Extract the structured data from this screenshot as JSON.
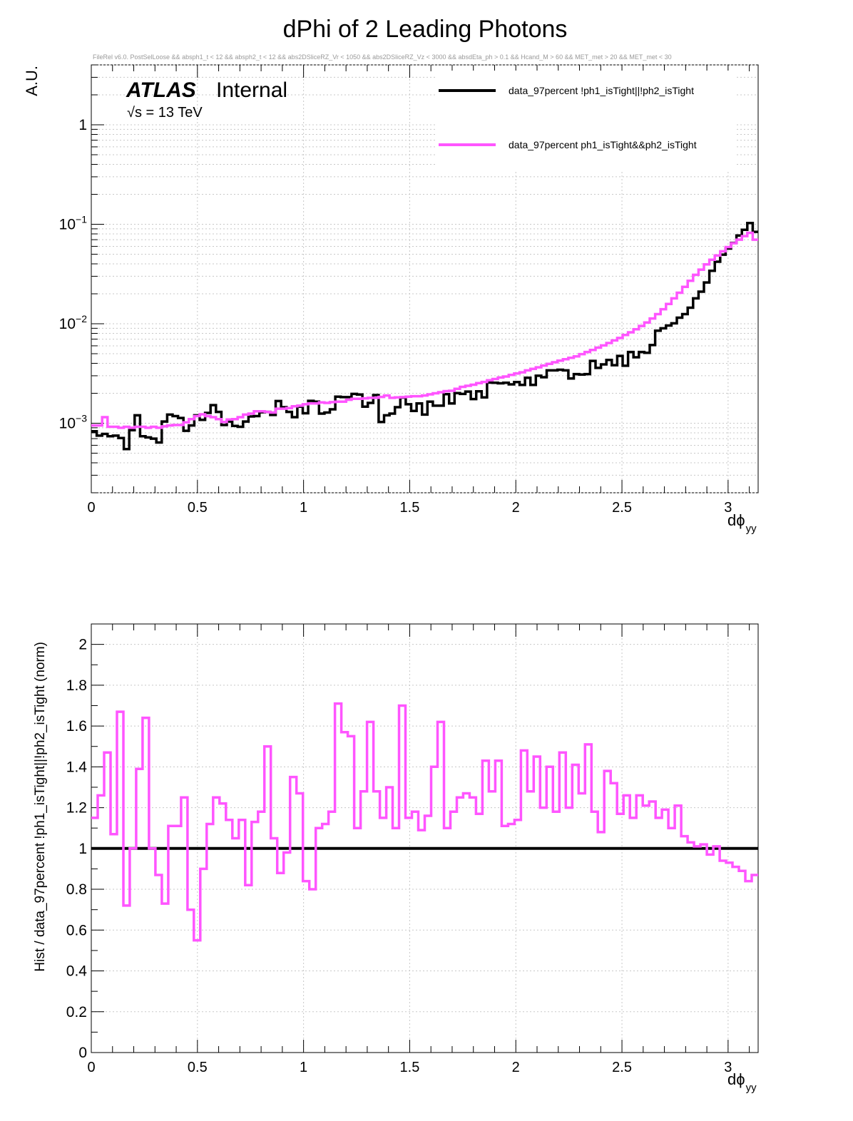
{
  "chart_data": [
    {
      "type": "line",
      "title": "dPhi of 2 Leading Photons",
      "subtitle": "FileRel v6.0. PostSelLoose &&  absph1_t < 12 && absph2_t < 12 && abs2DSliceRZ_Vr < 1050 && abs2DSliceRZ_Vz < 3000 && absdEta_ph > 0.1 && Hcand_M > 60 && MET_met > 20 && MET_met < 30",
      "ylabel": "A.U.",
      "xlabel_main": "dϕ",
      "xlabel_sub": "yy",
      "atlas_label": "ATLAS",
      "atlas_status": "Internal",
      "energy_label": "√s = 13 TeV",
      "xlim": [
        0,
        3.14159
      ],
      "ylim": [
        0.0002,
        4.0
      ],
      "yscale": "log",
      "grid": true,
      "legend_position": "top-right",
      "x_ticks": [
        "0",
        "0.5",
        "1",
        "1.5",
        "2",
        "2.5",
        "3"
      ],
      "y_ticks": [
        {
          "value": 0.001,
          "base": "10",
          "exp": "−3"
        },
        {
          "value": 0.01,
          "base": "10",
          "exp": "−2"
        },
        {
          "value": 0.1,
          "base": "10",
          "exp": "−1"
        },
        {
          "value": 1,
          "base": "1",
          "exp": ""
        }
      ],
      "series": [
        {
          "name": "data_97percent  !ph1_isTight||!ph2_isTight",
          "color": "#000000",
          "values": [
            0.00083,
            0.00075,
            0.00078,
            0.00074,
            0.00075,
            0.00071,
            0.00055,
            0.00085,
            0.0012,
            0.00074,
            0.00072,
            0.0007,
            0.00064,
            0.00104,
            0.00122,
            0.00118,
            0.00113,
            0.00084,
            0.00095,
            0.0012,
            0.00108,
            0.00127,
            0.00152,
            0.0013,
            0.00096,
            0.00104,
            0.00094,
            0.00092,
            0.00104,
            0.00117,
            0.00118,
            0.00129,
            0.0013,
            0.00121,
            0.00167,
            0.00145,
            0.0013,
            0.00115,
            0.00147,
            0.00126,
            0.00168,
            0.00165,
            0.00125,
            0.00128,
            0.00138,
            0.00185,
            0.00183,
            0.00183,
            0.00197,
            0.00194,
            0.00147,
            0.0016,
            0.00192,
            0.00103,
            0.0012,
            0.00125,
            0.00145,
            0.00181,
            0.00155,
            0.00133,
            0.00158,
            0.00122,
            0.00165,
            0.0015,
            0.0015,
            0.00196,
            0.00158,
            0.00201,
            0.00197,
            0.00208,
            0.00175,
            0.00209,
            0.00182,
            0.00256,
            0.00255,
            0.00252,
            0.00255,
            0.00246,
            0.00259,
            0.00243,
            0.00286,
            0.00243,
            0.003,
            0.0029,
            0.0034,
            0.0034,
            0.00345,
            0.0034,
            0.00282,
            0.00312,
            0.00308,
            0.00312,
            0.00423,
            0.0036,
            0.0039,
            0.00432,
            0.00383,
            0.00475,
            0.00378,
            0.0052,
            0.0046,
            0.0052,
            0.0051,
            0.0061,
            0.0085,
            0.009,
            0.0096,
            0.0101,
            0.0115,
            0.0125,
            0.0145,
            0.018,
            0.021,
            0.026,
            0.034,
            0.042,
            0.0495,
            0.057,
            0.065,
            0.077,
            0.088,
            0.103,
            0.084
          ]
        },
        {
          "name": "data_97percent  ph1_isTight&&ph2_isTight",
          "color": "#ff55ff",
          "values": [
            0.00095,
            0.00095,
            0.00115,
            0.00092,
            0.00092,
            0.0009,
            0.00092,
            0.0009,
            0.00092,
            0.00092,
            0.0009,
            0.00092,
            0.0009,
            0.00093,
            0.00095,
            0.00096,
            0.00096,
            0.00102,
            0.0011,
            0.00118,
            0.00123,
            0.00118,
            0.00115,
            0.0011,
            0.00103,
            0.00109,
            0.0011,
            0.00115,
            0.00122,
            0.00125,
            0.00132,
            0.00132,
            0.0013,
            0.00128,
            0.0014,
            0.0014,
            0.00142,
            0.00148,
            0.0015,
            0.00155,
            0.00158,
            0.00158,
            0.00162,
            0.0016,
            0.00163,
            0.00165,
            0.00165,
            0.00172,
            0.00176,
            0.00176,
            0.00178,
            0.0018,
            0.0018,
            0.00184,
            0.0019,
            0.0018,
            0.00182,
            0.00183,
            0.00185,
            0.00187,
            0.00187,
            0.0019,
            0.00195,
            0.002,
            0.00205,
            0.0021,
            0.00212,
            0.00222,
            0.00232,
            0.00238,
            0.00244,
            0.00253,
            0.0026,
            0.0027,
            0.00278,
            0.00288,
            0.00295,
            0.00306,
            0.00316,
            0.00325,
            0.0034,
            0.00352,
            0.00365,
            0.0038,
            0.00395,
            0.0041,
            0.00425,
            0.0044,
            0.00455,
            0.0047,
            0.00495,
            0.0052,
            0.00545,
            0.00575,
            0.00605,
            0.0064,
            0.0068,
            0.0072,
            0.0077,
            0.0082,
            0.0088,
            0.0095,
            0.0103,
            0.0113,
            0.0125,
            0.014,
            0.0158,
            0.018,
            0.0205,
            0.0235,
            0.027,
            0.031,
            0.035,
            0.0395,
            0.044,
            0.0485,
            0.0535,
            0.059,
            0.0645,
            0.07,
            0.076,
            0.082,
            0.07
          ]
        }
      ]
    },
    {
      "type": "line",
      "ylabel": "Hist / data_97percent  !ph1_isTight||!ph2_isTight (norm)",
      "xlabel_main": "dϕ",
      "xlabel_sub": "yy",
      "xlim": [
        0,
        3.14159
      ],
      "ylim": [
        0,
        2.1
      ],
      "grid": true,
      "x_ticks": [
        "0",
        "0.5",
        "1",
        "1.5",
        "2",
        "2.5",
        "3"
      ],
      "y_ticks": [
        "0",
        "0.2",
        "0.4",
        "0.6",
        "0.8",
        "1",
        "1.2",
        "1.4",
        "1.6",
        "1.8",
        "2"
      ],
      "reference_line": {
        "value": 1.0,
        "color": "#000000"
      },
      "series": [
        {
          "color": "#ff55ff",
          "values": [
            1.15,
            1.26,
            1.47,
            1.07,
            1.67,
            0.72,
            1.0,
            1.39,
            1.64,
            1.0,
            0.87,
            0.73,
            1.11,
            1.11,
            1.25,
            0.7,
            0.55,
            0.9,
            1.12,
            1.25,
            1.22,
            1.14,
            1.05,
            1.14,
            0.82,
            1.13,
            1.18,
            1.5,
            1.05,
            0.88,
            0.98,
            1.35,
            1.27,
            0.84,
            0.8,
            1.1,
            1.12,
            1.18,
            1.71,
            1.57,
            1.55,
            1.1,
            1.28,
            1.62,
            1.28,
            1.15,
            1.3,
            1.1,
            1.7,
            1.15,
            1.18,
            1.09,
            1.16,
            1.4,
            1.62,
            1.1,
            1.18,
            1.25,
            1.27,
            1.25,
            1.17,
            1.43,
            1.28,
            1.43,
            1.11,
            1.12,
            1.14,
            1.48,
            1.28,
            1.45,
            1.2,
            1.4,
            1.18,
            1.47,
            1.2,
            1.41,
            1.27,
            1.51,
            1.18,
            1.08,
            1.38,
            1.32,
            1.17,
            1.26,
            1.15,
            1.26,
            1.21,
            1.23,
            1.15,
            1.19,
            1.1,
            1.21,
            1.06,
            1.03,
            1.01,
            1.02,
            0.97,
            1.01,
            0.94,
            0.93,
            0.91,
            0.89,
            0.84,
            0.87
          ]
        }
      ]
    }
  ]
}
